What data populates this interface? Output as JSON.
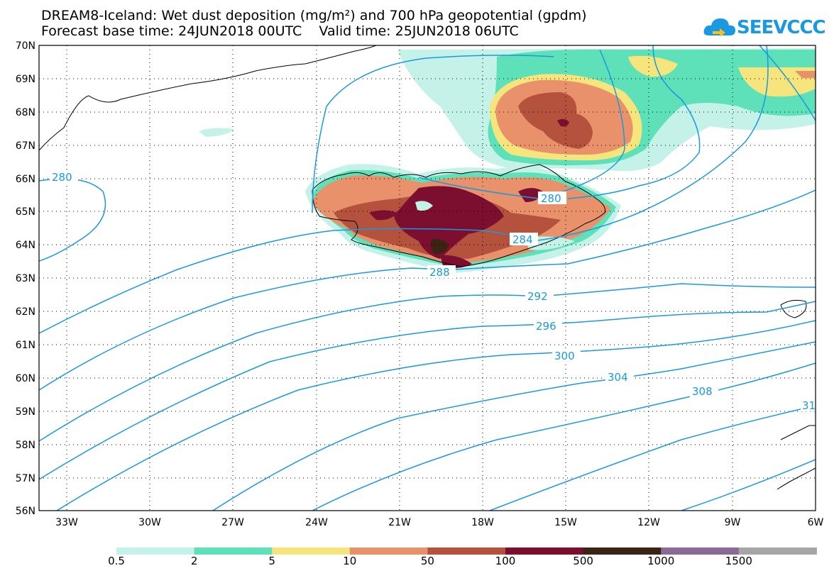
{
  "title_line1": "DREAM8-Iceland: Wet dust deposition (mg/m²) and 700 hPa geopotential (gpdm)",
  "title_line2": "Forecast base time: 24JUN2018 00UTC    Valid time: 25JUN2018 06UTC",
  "logo_text": "SEEVCCC",
  "lat_labels": [
    "70N",
    "69N",
    "68N",
    "67N",
    "66N",
    "65N",
    "64N",
    "63N",
    "62N",
    "61N",
    "60N",
    "59N",
    "58N",
    "57N",
    "56N"
  ],
  "lon_labels": [
    "33W",
    "30W",
    "27W",
    "24W",
    "21W",
    "18W",
    "15W",
    "12W",
    "9W",
    "6W"
  ],
  "contour_labels": [
    "280",
    "280",
    "284",
    "288",
    "292",
    "296",
    "300",
    "304",
    "308",
    "31"
  ],
  "legend": {
    "colors": [
      "#c4f2e8",
      "#5ee0b8",
      "#f6e57c",
      "#e8916a",
      "#b4523e",
      "#7c0f2f",
      "#3c2414",
      "#8c6a98",
      "#a6a6a6"
    ],
    "labels": [
      "0.5",
      "2",
      "5",
      "10",
      "50",
      "100",
      "500",
      "1000",
      "1500"
    ]
  }
}
